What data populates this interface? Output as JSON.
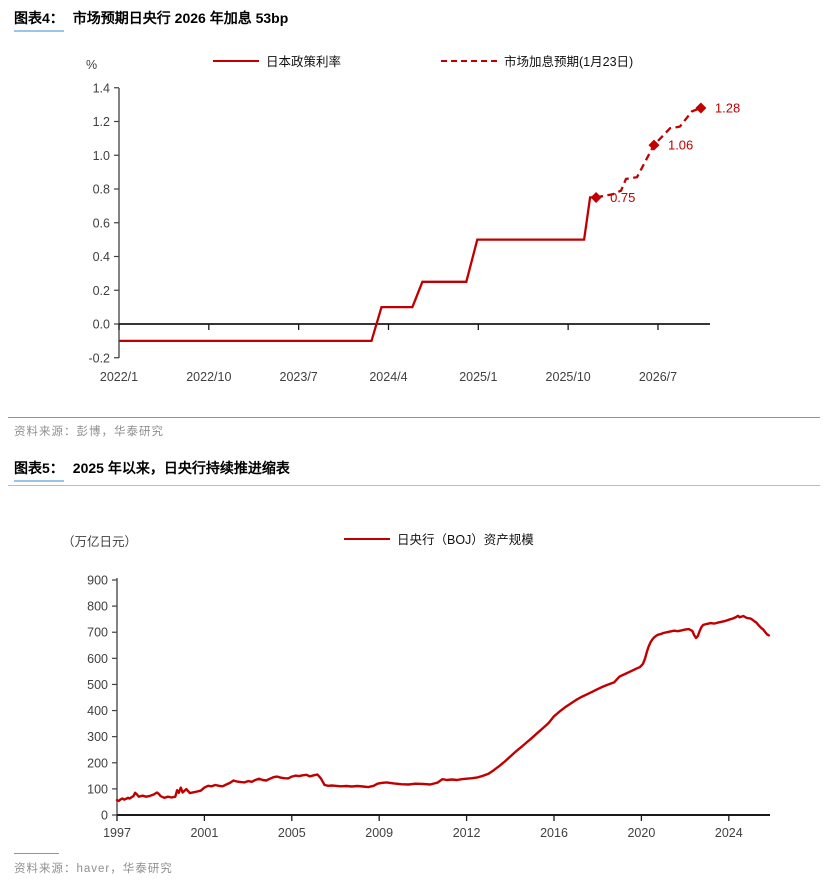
{
  "page": {
    "background": "#ffffff",
    "accent_red": "#c00000",
    "divider_blue": "#9dc3e6",
    "divider_gray": "#8496a8",
    "axis_text_color": "#404040",
    "axis_line_color": "#1a1a1a"
  },
  "figure4": {
    "label": "图表4：",
    "title": "市场预期日央行 2026 年加息 53bp",
    "unit": "%",
    "legend": [
      {
        "label": "日本政策利率",
        "style": "solid"
      },
      {
        "label": "市场加息预期(1月23日)",
        "style": "dashed"
      }
    ],
    "source": "资料来源：彭博，华泰研究"
  },
  "figure5": {
    "label": "图表5：",
    "title": "2025 年以来，日央行持续推进缩表",
    "unit": "（万亿日元）",
    "legend": [
      {
        "label": "日央行（BOJ）资产规模",
        "style": "solid"
      }
    ],
    "source": "资料来源：haver，华泰研究"
  },
  "chart_data": [
    {
      "type": "line",
      "title": "市场预期日央行 2026 年加息 53bp",
      "ylabel": "%",
      "legend_position": "top",
      "grid": false,
      "x_axis": {
        "unit": "months since 2022/1",
        "range": [
          0,
          60
        ],
        "tick_positions": [
          0,
          9,
          18,
          27,
          36,
          45,
          54
        ],
        "tick_labels": [
          "2022/1",
          "2022/10",
          "2023/7",
          "2024/4",
          "2025/1",
          "2025/10",
          "2026/7"
        ]
      },
      "y_axis": {
        "range": [
          -0.2,
          1.4
        ],
        "tick_values": [
          -0.2,
          0.0,
          0.2,
          0.4,
          0.6,
          0.8,
          1.0,
          1.2,
          1.4
        ],
        "tick_labels": [
          "-0.2",
          "0.0",
          "0.2",
          "0.4",
          "0.6",
          "0.8",
          "1.0",
          "1.2",
          "1.4"
        ],
        "zero_line": true
      },
      "series": [
        {
          "name": "日本政策利率",
          "style": "solid",
          "color": "#c00000",
          "points": [
            [
              0,
              -0.1
            ],
            [
              25.3,
              -0.1
            ],
            [
              26.3,
              0.1
            ],
            [
              29.4,
              0.1
            ],
            [
              30.4,
              0.25
            ],
            [
              34.8,
              0.25
            ],
            [
              35.9,
              0.5
            ],
            [
              46.6,
              0.5
            ],
            [
              47.2,
              0.75
            ],
            [
              47.8,
              0.75
            ]
          ]
        },
        {
          "name": "市场加息预期(1月23日)",
          "style": "dashed",
          "color": "#c00000",
          "points": [
            [
              47.8,
              0.75
            ],
            [
              49.5,
              0.77
            ],
            [
              50.3,
              0.79
            ],
            [
              50.8,
              0.86
            ],
            [
              51.9,
              0.87
            ],
            [
              52.7,
              0.96
            ],
            [
              53.6,
              1.06
            ],
            [
              55.2,
              1.16
            ],
            [
              56.2,
              1.17
            ],
            [
              57.4,
              1.26
            ],
            [
              58.3,
              1.28
            ]
          ]
        }
      ],
      "markers": [
        {
          "x": 47.8,
          "y": 0.75,
          "label": "0.75",
          "shape": "diamond",
          "color": "#c00000"
        },
        {
          "x": 53.6,
          "y": 1.06,
          "label": "1.06",
          "shape": "diamond",
          "color": "#c00000"
        },
        {
          "x": 58.3,
          "y": 1.28,
          "label": "1.28",
          "shape": "diamond",
          "color": "#c00000"
        }
      ]
    },
    {
      "type": "line",
      "title": "2025 年以来，日央行持续推进缩表",
      "ylabel": "（万亿日元）",
      "legend_position": "top",
      "grid": false,
      "x_axis": {
        "unit": "year",
        "anchor_years": [
          1997,
          2001,
          2005,
          2009,
          2012,
          2016,
          2020,
          2024
        ],
        "tick_labels": [
          "1997",
          "2001",
          "2005",
          "2009",
          "2012",
          "2016",
          "2020",
          "2024"
        ],
        "data_end_year": 2025.83
      },
      "y_axis": {
        "range": [
          0,
          900
        ],
        "tick_values": [
          0,
          100,
          200,
          300,
          400,
          500,
          600,
          700,
          800,
          900
        ],
        "tick_labels": [
          "0",
          "100",
          "200",
          "300",
          "400",
          "500",
          "600",
          "700",
          "800",
          "900"
        ]
      },
      "series": [
        {
          "name": "日央行（BOJ）资产规模",
          "style": "solid",
          "color": "#c00000",
          "points": [
            [
              1997.0,
              57
            ],
            [
              1997.08,
              54
            ],
            [
              1997.17,
              60
            ],
            [
              1997.25,
              63
            ],
            [
              1997.33,
              59
            ],
            [
              1997.42,
              62
            ],
            [
              1997.5,
              66
            ],
            [
              1997.58,
              63
            ],
            [
              1997.67,
              68
            ],
            [
              1997.75,
              72
            ],
            [
              1997.83,
              85
            ],
            [
              1997.92,
              78
            ],
            [
              1998.0,
              70
            ],
            [
              1998.17,
              74
            ],
            [
              1998.33,
              70
            ],
            [
              1998.5,
              73
            ],
            [
              1998.67,
              78
            ],
            [
              1998.83,
              86
            ],
            [
              1998.92,
              80
            ],
            [
              1999.0,
              72
            ],
            [
              1999.17,
              66
            ],
            [
              1999.33,
              70
            ],
            [
              1999.5,
              67
            ],
            [
              1999.67,
              70
            ],
            [
              1999.75,
              95
            ],
            [
              1999.83,
              85
            ],
            [
              1999.92,
              105
            ],
            [
              2000.0,
              86
            ],
            [
              2000.17,
              99
            ],
            [
              2000.33,
              84
            ],
            [
              2000.5,
              87
            ],
            [
              2000.67,
              90
            ],
            [
              2000.83,
              93
            ],
            [
              2001.0,
              105
            ],
            [
              2001.17,
              112
            ],
            [
              2001.33,
              110
            ],
            [
              2001.5,
              115
            ],
            [
              2001.67,
              112
            ],
            [
              2001.83,
              110
            ],
            [
              2002.0,
              117
            ],
            [
              2002.17,
              123
            ],
            [
              2002.33,
              132
            ],
            [
              2002.5,
              128
            ],
            [
              2002.67,
              126
            ],
            [
              2002.83,
              125
            ],
            [
              2003.0,
              130
            ],
            [
              2003.17,
              127
            ],
            [
              2003.33,
              134
            ],
            [
              2003.5,
              139
            ],
            [
              2003.67,
              134
            ],
            [
              2003.83,
              132
            ],
            [
              2004.0,
              139
            ],
            [
              2004.17,
              145
            ],
            [
              2004.33,
              147
            ],
            [
              2004.5,
              143
            ],
            [
              2004.67,
              141
            ],
            [
              2004.83,
              140
            ],
            [
              2005.0,
              147
            ],
            [
              2005.17,
              151
            ],
            [
              2005.33,
              149
            ],
            [
              2005.5,
              152
            ],
            [
              2005.67,
              154
            ],
            [
              2005.83,
              148
            ],
            [
              2006.0,
              152
            ],
            [
              2006.17,
              155
            ],
            [
              2006.33,
              140
            ],
            [
              2006.5,
              115
            ],
            [
              2006.67,
              112
            ],
            [
              2006.83,
              113
            ],
            [
              2007.0,
              112
            ],
            [
              2007.25,
              110
            ],
            [
              2007.5,
              111
            ],
            [
              2007.75,
              109
            ],
            [
              2008.0,
              111
            ],
            [
              2008.25,
              109
            ],
            [
              2008.5,
              107
            ],
            [
              2008.75,
              112
            ],
            [
              2008.92,
              120
            ],
            [
              2009.08,
              123
            ],
            [
              2009.25,
              125
            ],
            [
              2009.5,
              121
            ],
            [
              2009.75,
              118
            ],
            [
              2010.0,
              117
            ],
            [
              2010.25,
              120
            ],
            [
              2010.5,
              119
            ],
            [
              2010.75,
              117
            ],
            [
              2011.0,
              124
            ],
            [
              2011.17,
              137
            ],
            [
              2011.33,
              134
            ],
            [
              2011.5,
              136
            ],
            [
              2011.67,
              134
            ],
            [
              2011.83,
              137
            ],
            [
              2012.0,
              139
            ],
            [
              2012.25,
              141
            ],
            [
              2012.5,
              144
            ],
            [
              2012.75,
              150
            ],
            [
              2013.0,
              158
            ],
            [
              2013.25,
              172
            ],
            [
              2013.5,
              188
            ],
            [
              2013.75,
              205
            ],
            [
              2014.0,
              224
            ],
            [
              2014.25,
              243
            ],
            [
              2014.5,
              260
            ],
            [
              2014.75,
              278
            ],
            [
              2015.0,
              296
            ],
            [
              2015.25,
              315
            ],
            [
              2015.5,
              333
            ],
            [
              2015.75,
              352
            ],
            [
              2016.0,
              378
            ],
            [
              2016.25,
              396
            ],
            [
              2016.5,
              412
            ],
            [
              2016.75,
              426
            ],
            [
              2017.0,
              440
            ],
            [
              2017.25,
              452
            ],
            [
              2017.5,
              462
            ],
            [
              2017.75,
              472
            ],
            [
              2018.0,
              482
            ],
            [
              2018.25,
              492
            ],
            [
              2018.5,
              500
            ],
            [
              2018.75,
              508
            ],
            [
              2019.0,
              530
            ],
            [
              2019.25,
              540
            ],
            [
              2019.5,
              550
            ],
            [
              2019.75,
              560
            ],
            [
              2019.92,
              566
            ],
            [
              2020.0,
              572
            ],
            [
              2020.08,
              580
            ],
            [
              2020.17,
              600
            ],
            [
              2020.25,
              625
            ],
            [
              2020.33,
              645
            ],
            [
              2020.42,
              662
            ],
            [
              2020.5,
              672
            ],
            [
              2020.58,
              680
            ],
            [
              2020.67,
              686
            ],
            [
              2020.75,
              690
            ],
            [
              2020.92,
              694
            ],
            [
              2021.0,
              697
            ],
            [
              2021.17,
              700
            ],
            [
              2021.33,
              703
            ],
            [
              2021.5,
              706
            ],
            [
              2021.67,
              704
            ],
            [
              2021.83,
              707
            ],
            [
              2022.0,
              710
            ],
            [
              2022.17,
              712
            ],
            [
              2022.33,
              705
            ],
            [
              2022.42,
              688
            ],
            [
              2022.5,
              678
            ],
            [
              2022.58,
              685
            ],
            [
              2022.67,
              705
            ],
            [
              2022.75,
              720
            ],
            [
              2022.83,
              728
            ],
            [
              2023.0,
              732
            ],
            [
              2023.17,
              735
            ],
            [
              2023.33,
              733
            ],
            [
              2023.5,
              737
            ],
            [
              2023.67,
              740
            ],
            [
              2023.83,
              743
            ],
            [
              2024.0,
              748
            ],
            [
              2024.17,
              752
            ],
            [
              2024.33,
              758
            ],
            [
              2024.42,
              763
            ],
            [
              2024.5,
              757
            ],
            [
              2024.58,
              760
            ],
            [
              2024.67,
              762
            ],
            [
              2024.75,
              758
            ],
            [
              2024.83,
              755
            ],
            [
              2025.0,
              752
            ],
            [
              2025.08,
              748
            ],
            [
              2025.17,
              742
            ],
            [
              2025.25,
              738
            ],
            [
              2025.33,
              730
            ],
            [
              2025.42,
              722
            ],
            [
              2025.5,
              715
            ],
            [
              2025.58,
              710
            ],
            [
              2025.67,
              700
            ],
            [
              2025.75,
              692
            ],
            [
              2025.83,
              688
            ]
          ]
        }
      ]
    }
  ]
}
